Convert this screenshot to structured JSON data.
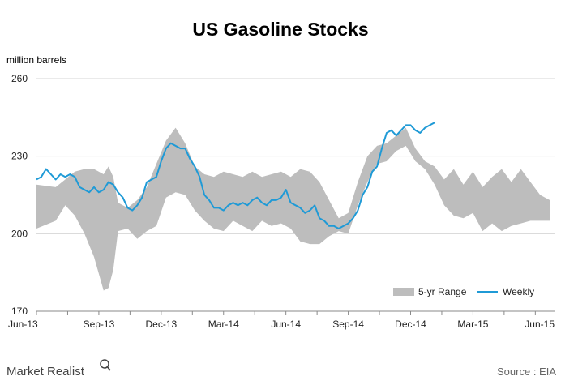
{
  "chart_data": {
    "type": "area",
    "title": "US Gasoline Stocks",
    "unit_label": "million barrels",
    "ylim": [
      170,
      260
    ],
    "y_ticks": [
      170,
      200,
      230,
      260
    ],
    "x_ticks": [
      "Jun-13",
      "Sep-13",
      "Dec-13",
      "Mar-14",
      "Jun-14",
      "Sep-14",
      "Dec-14",
      "Mar-15",
      "Jun-15"
    ],
    "grid": "horizontal",
    "legend_position": "bottom-right",
    "colors": {
      "range": "#bdbdbd",
      "weekly": "#1f9ad6",
      "grid": "#d6d6d6"
    },
    "series": [
      {
        "name": "5-yr Range",
        "kind": "band",
        "weeks": [
          0,
          4,
          6,
          8,
          10,
          12,
          14,
          15,
          16,
          17,
          19,
          21,
          23,
          25,
          27,
          29,
          31,
          33,
          35,
          37,
          39,
          41,
          43,
          45,
          47,
          49,
          51,
          53,
          55,
          57,
          59,
          61,
          63,
          65,
          67,
          69,
          71,
          73,
          75,
          77,
          79,
          81,
          83,
          85,
          87,
          89,
          91,
          93,
          95,
          97,
          99,
          101,
          103,
          105,
          107
        ],
        "upper": [
          219,
          218,
          221,
          224,
          225,
          225,
          223,
          226,
          222,
          212,
          210,
          213,
          218,
          227,
          236,
          241,
          235,
          226,
          223,
          222,
          224,
          223,
          222,
          224,
          222,
          223,
          224,
          222,
          225,
          224,
          220,
          213,
          206,
          208,
          220,
          230,
          234,
          235,
          238,
          241,
          233,
          228,
          226,
          221,
          225,
          219,
          224,
          218,
          222,
          225,
          220,
          225,
          220,
          215,
          213
        ],
        "lower": [
          202,
          205,
          211,
          207,
          200,
          191,
          178,
          179,
          186,
          201,
          202,
          198,
          201,
          203,
          214,
          216,
          215,
          209,
          205,
          202,
          201,
          205,
          203,
          201,
          205,
          203,
          204,
          202,
          197,
          196,
          196,
          199,
          201,
          200,
          211,
          220,
          227,
          228,
          232,
          234,
          228,
          225,
          219,
          211,
          207,
          206,
          208,
          201,
          204,
          201,
          203,
          204,
          205,
          205,
          205
        ]
      },
      {
        "name": "Weekly",
        "kind": "line",
        "weeks": [
          0,
          1,
          2,
          3,
          4,
          5,
          6,
          7,
          8,
          9,
          10,
          11,
          12,
          13,
          14,
          15,
          16,
          17,
          18,
          19,
          20,
          21,
          22,
          23,
          24,
          25,
          26,
          27,
          28,
          29,
          30,
          31,
          32,
          33,
          34,
          35,
          36,
          37,
          38,
          39,
          40,
          41,
          42,
          43,
          44,
          45,
          46,
          47,
          48,
          49,
          50,
          51,
          52,
          53,
          54,
          55,
          56,
          57,
          58,
          59,
          60,
          61,
          62,
          63,
          64,
          65,
          66,
          67,
          68,
          69,
          70,
          71,
          72,
          73,
          74,
          75,
          76,
          77,
          78,
          79,
          80,
          81,
          82,
          83
        ],
        "values": [
          221,
          222,
          225,
          223,
          221,
          223,
          222,
          223,
          222,
          218,
          217,
          216,
          218,
          216,
          217,
          220,
          219,
          216,
          214,
          210,
          209,
          211,
          214,
          220,
          221,
          222,
          228,
          233,
          235,
          234,
          233,
          233,
          229,
          226,
          222,
          215,
          213,
          210,
          210,
          209,
          211,
          212,
          211,
          212,
          211,
          213,
          214,
          212,
          211,
          213,
          213,
          214,
          217,
          212,
          211,
          210,
          208,
          209,
          211,
          206,
          205,
          203,
          203,
          202,
          203,
          204,
          206,
          209,
          215,
          218,
          224,
          226,
          233,
          239,
          240,
          238,
          240,
          242,
          242,
          240,
          239,
          241,
          242,
          243
        ]
      }
    ]
  },
  "branding": {
    "name": "Market Realist"
  },
  "source": {
    "text": "Source : EIA"
  }
}
